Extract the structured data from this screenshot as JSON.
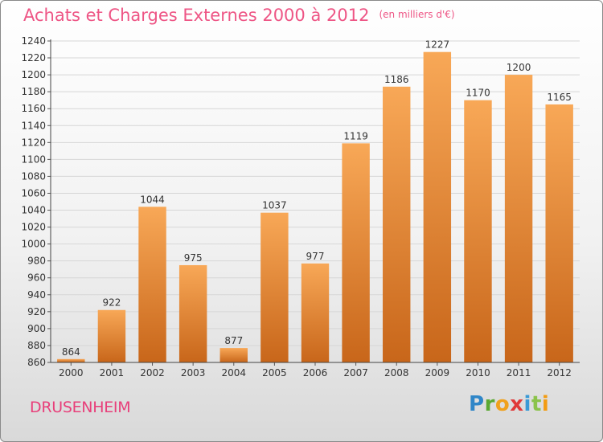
{
  "header": {
    "title": "Achats et Charges Externes 2000 à 2012",
    "unit": "(en milliers d'€)"
  },
  "footer": {
    "location": "DRUSENHEIM",
    "logo_text": "Proxiti"
  },
  "colors": {
    "bar_top": "#f8a857",
    "bar_bottom": "#c8661a",
    "title": "#ee5585",
    "grid": "#d6d6d6"
  },
  "chart_data": {
    "type": "bar",
    "title": "Achats et Charges Externes 2000 à 2012",
    "categories": [
      "2000",
      "2001",
      "2002",
      "2003",
      "2004",
      "2005",
      "2006",
      "2007",
      "2008",
      "2009",
      "2010",
      "2011",
      "2012"
    ],
    "values": [
      864,
      922,
      1044,
      975,
      877,
      1037,
      977,
      1119,
      1186,
      1227,
      1170,
      1200,
      1165
    ],
    "ylim": [
      860,
      1240
    ],
    "yticks": [
      860,
      880,
      900,
      920,
      940,
      960,
      980,
      1000,
      1020,
      1040,
      1060,
      1080,
      1100,
      1120,
      1140,
      1160,
      1180,
      1200,
      1220,
      1240
    ],
    "grid": true,
    "xlabel": "",
    "ylabel": ""
  }
}
